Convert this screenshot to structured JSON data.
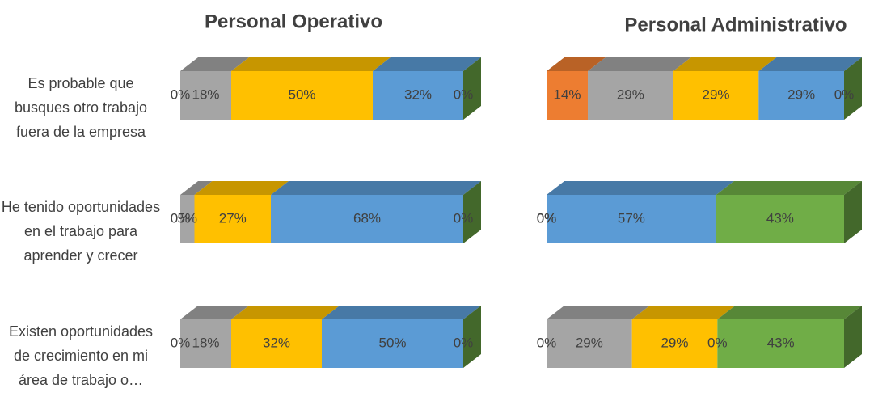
{
  "chart_data": [
    {
      "type": "bar",
      "orientation": "horizontal",
      "stacked": true,
      "title": "Personal Operativo",
      "categories": [
        "Es probable que busques otro trabajo fuera de la empresa",
        "He tenido oportunidades en el trabajo para aprender y crecer",
        "Existen oportunidades de crecimiento en mi área de trabajo o…"
      ],
      "series": [
        {
          "color": "#ed7d31",
          "values": [
            0,
            0,
            0
          ],
          "value_labels": [
            "0%",
            "0%",
            "0%"
          ]
        },
        {
          "color": "#a5a5a5",
          "values": [
            18,
            5,
            18
          ],
          "value_labels": [
            "18%",
            "5%",
            "18%"
          ]
        },
        {
          "color": "#ffc000",
          "values": [
            50,
            27,
            32
          ],
          "value_labels": [
            "50%",
            "27%",
            "32%"
          ]
        },
        {
          "color": "#5b9bd5",
          "values": [
            32,
            68,
            50
          ],
          "value_labels": [
            "32%",
            "68%",
            "50%"
          ]
        },
        {
          "color": "#70ad47",
          "values": [
            0,
            0,
            0
          ],
          "value_labels": [
            "0%",
            "0%",
            "0%"
          ]
        }
      ]
    },
    {
      "type": "bar",
      "orientation": "horizontal",
      "stacked": true,
      "title": "Personal Administrativo",
      "series": [
        {
          "color": "#ed7d31",
          "values": [
            14,
            0,
            0
          ],
          "value_labels": [
            "14%",
            "0%",
            "0%"
          ]
        },
        {
          "color": "#a5a5a5",
          "values": [
            29,
            0,
            29
          ],
          "value_labels": [
            "29%",
            "0%",
            "29%"
          ]
        },
        {
          "color": "#ffc000",
          "values": [
            29,
            0,
            29
          ],
          "value_labels": [
            "29%",
            "0%",
            "29%"
          ]
        },
        {
          "color": "#5b9bd5",
          "values": [
            29,
            57,
            0
          ],
          "value_labels": [
            "29%",
            "57%",
            "0%"
          ]
        },
        {
          "color": "#70ad47",
          "values": [
            0,
            43,
            43
          ],
          "value_labels": [
            "0%",
            "43%",
            "43%"
          ]
        }
      ]
    }
  ]
}
